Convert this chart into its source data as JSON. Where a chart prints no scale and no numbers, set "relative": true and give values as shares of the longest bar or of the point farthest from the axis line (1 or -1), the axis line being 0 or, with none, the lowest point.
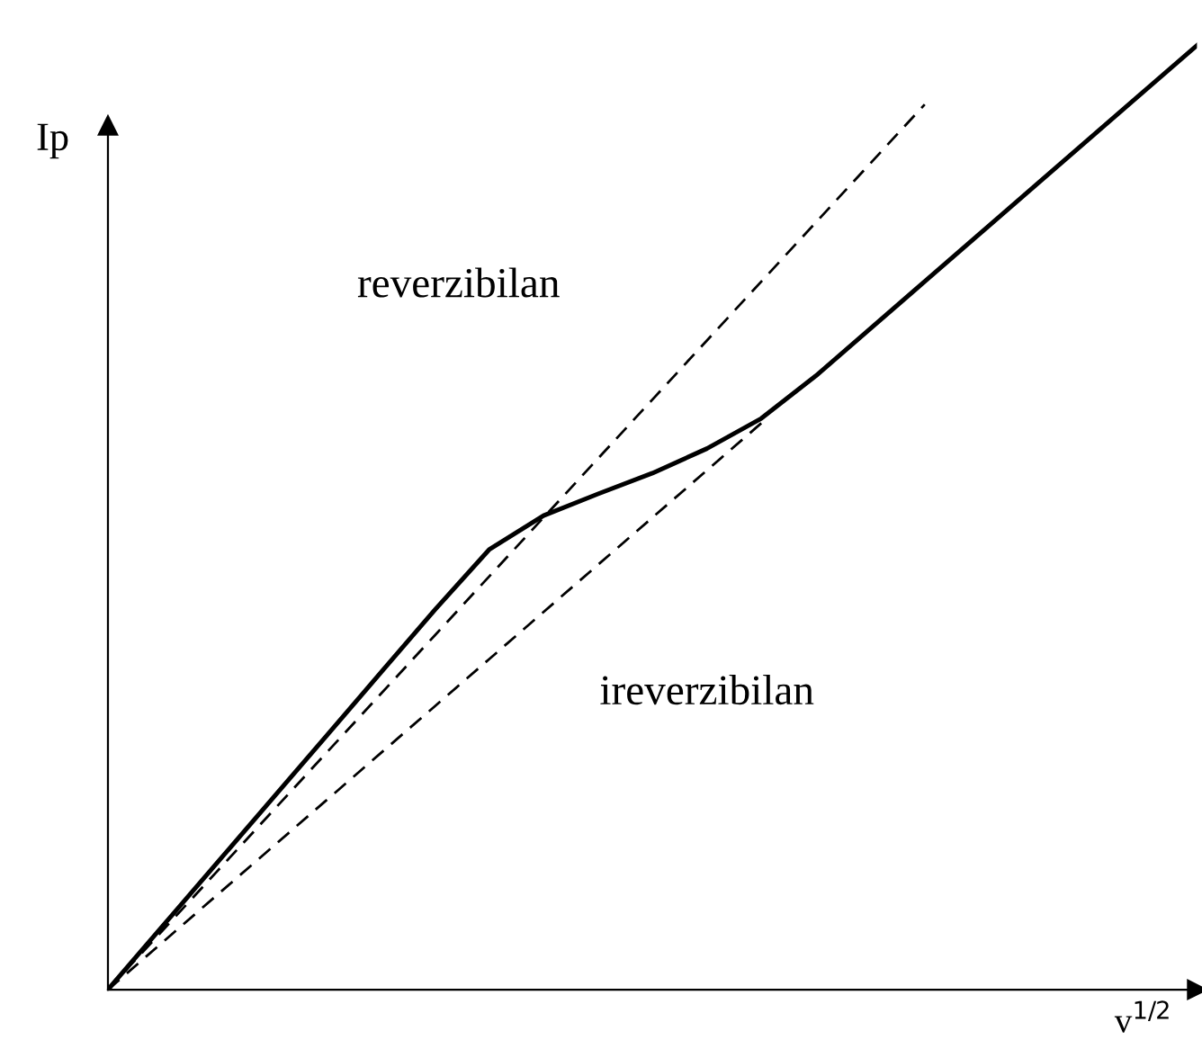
{
  "chart_data": {
    "type": "line",
    "relative": true,
    "xlabel": "v$^{1/2}$",
    "ylabel": "Ip",
    "annotations": [
      "reverzibilan",
      "ireverzibilan"
    ],
    "categories": [
      null,
      null,
      null,
      null,
      null,
      null,
      null,
      null,
      null,
      null,
      null,
      null,
      null,
      null,
      null,
      null,
      null,
      null,
      null,
      null,
      null
    ],
    "series": [
      {
        "color": "#000000",
        "line_style": "solid",
        "values": [
          0,
          0.067,
          0.134,
          0.201,
          0.268,
          0.335,
          0.402,
          0.466,
          0.502,
          0.525,
          0.547,
          0.573,
          0.605,
          0.65,
          0.7,
          0.75,
          0.8,
          0.85,
          0.9,
          0.95,
          1.0
        ]
      },
      {
        "color": "#000000",
        "line_style": "dashed",
        "values": [
          0,
          0.0625,
          0.125,
          0.1875,
          0.25,
          0.3125,
          0.375,
          0.4375,
          0.5,
          0.5625,
          0.625,
          0.6875,
          0.75,
          0.8125,
          0.875,
          0.9375,
          null,
          null,
          null,
          null,
          null
        ]
      },
      {
        "color": "#000000",
        "line_style": "dashed",
        "values": [
          0,
          0.05,
          0.1,
          0.15,
          0.2,
          0.25,
          0.3,
          0.35,
          0.4,
          0.45,
          0.5,
          0.55,
          0.6,
          null,
          null,
          null,
          null,
          null,
          null,
          null,
          null
        ]
      }
    ]
  }
}
